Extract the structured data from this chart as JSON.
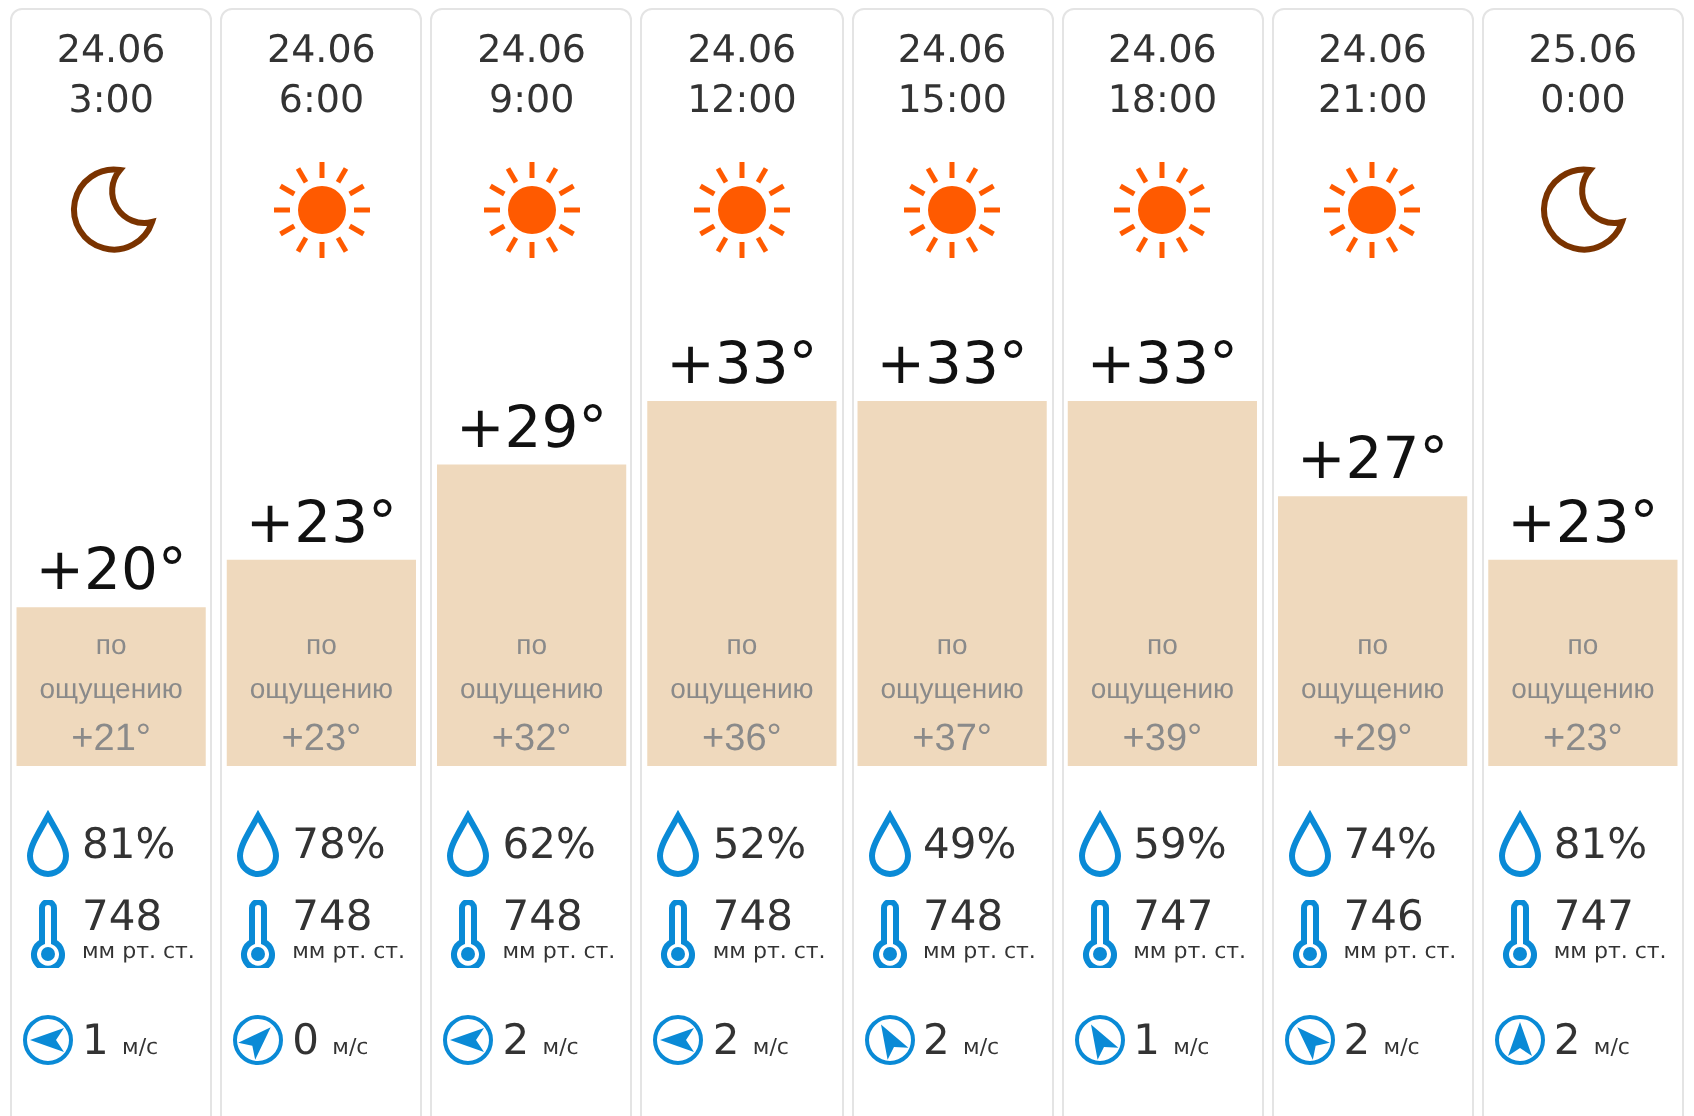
{
  "chart_data": {
    "type": "bar",
    "categories": [
      "24.06 3:00",
      "24.06 6:00",
      "24.06 9:00",
      "24.06 12:00",
      "24.06 15:00",
      "24.06 18:00",
      "24.06 21:00",
      "25.06 0:00"
    ],
    "series": [
      {
        "color": "#efd9bd",
        "values": [
          20,
          23,
          29,
          33,
          33,
          33,
          27,
          23
        ],
        "value_labels": [
          "+20°",
          "+23°",
          "+29°",
          "+33°",
          "+33°",
          "+33°",
          "+27°",
          "+23°"
        ]
      }
    ],
    "tick_labels": "x",
    "legend": false,
    "annotations": [
      "по ощущению +21°",
      "по ощущению +23°",
      "по ощущению +32°",
      "по ощущению +36°",
      "по ощущению +37°",
      "по ощущению +39°",
      "по ощущению +29°",
      "по ощущению +23°",
      "81%",
      "78%",
      "62%",
      "52%",
      "49%",
      "59%",
      "74%",
      "81%",
      "748 мм рт. ст.",
      "748 мм рт. ст.",
      "748 мм рт. ст.",
      "748 мм рт. ст.",
      "748 мм рт. ст.",
      "747 мм рт. ст.",
      "746 мм рт. ст.",
      "747 мм рт. ст.",
      "1 м/с",
      "0 м/с",
      "2 м/с",
      "2 м/с",
      "2 м/с",
      "1 м/с",
      "2 м/с",
      "2 м/с"
    ]
  }
}
